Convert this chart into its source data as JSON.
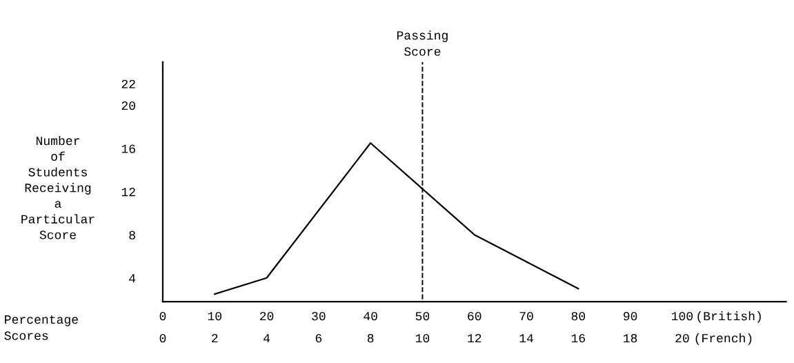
{
  "chart_data": {
    "type": "line",
    "xlabel": "Percentage Scores",
    "ylabel": "Number of Students Receiving a Particular Score",
    "x": [
      10,
      20,
      40,
      60,
      80
    ],
    "series": [
      {
        "color": "#000000",
        "values": [
          2.5,
          4,
          16.5,
          8,
          3
        ]
      }
    ],
    "xlim": [
      0,
      120
    ],
    "xticks": [
      0,
      10,
      20,
      30,
      40,
      50,
      60,
      70,
      80,
      90,
      100
    ],
    "x2lim": [
      0,
      24
    ],
    "x2ticks": [
      0,
      2,
      4,
      6,
      8,
      10,
      12,
      14,
      16,
      18,
      20
    ],
    "ylim": [
      1.8,
      24
    ],
    "yticks": [
      4,
      8,
      12,
      16,
      20,
      22
    ],
    "ref_lines": [
      {
        "axis": "x",
        "value": 50,
        "label": "Passing Score",
        "color": "#000000",
        "line_style": "dashed"
      }
    ],
    "annotations": [
      "(British)",
      "(French)"
    ],
    "grid": false,
    "legend": false,
    "marker": "none",
    "line_style": "solid"
  }
}
